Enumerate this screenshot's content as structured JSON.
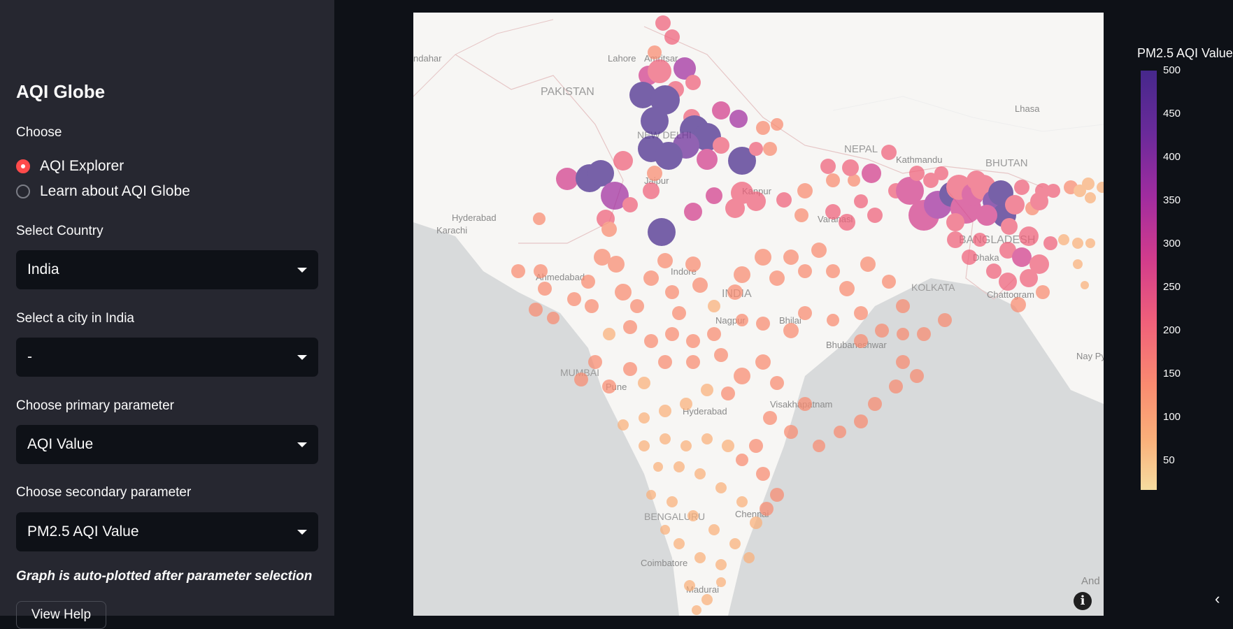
{
  "sidebar": {
    "title": "AQI Globe",
    "choose_label": "Choose",
    "radio_options": [
      "AQI Explorer",
      "Learn about AQI Globe"
    ],
    "selected_option": "AQI Explorer",
    "country_label": "Select Country",
    "country_value": "India",
    "city_label": "Select a city in India",
    "city_value": "-",
    "primary_label": "Choose primary parameter",
    "primary_value": "AQI Value",
    "secondary_label": "Choose secondary parameter",
    "secondary_value": "PM2.5 AQI Value",
    "note": "Graph is auto-plotted after parameter selection",
    "help_button": "View Help"
  },
  "map": {
    "labels": [
      "ndahar",
      "Lahore",
      "Amritsar",
      "PAKISTAN",
      "NEW DELHI",
      "Jaipur",
      "Kanpur",
      "Lhasa",
      "NEPAL",
      "Kathmandu",
      "BHUTAN",
      "Hyderabad",
      "Karachi",
      "Varanasi",
      "BANGLADESH",
      "Dhaka",
      "Ahmedabad",
      "Indore",
      "INDIA",
      "KOLKATA",
      "Chattogram",
      "Nagpur",
      "Bhilai",
      "Bhubaneshwar",
      "MUMBAI",
      "Pune",
      "Hyderabad",
      "Visakhapatnam",
      "Nay Pyi",
      "BENGALURU",
      "Chennai",
      "Coimbatore",
      "Madurai",
      "And"
    ]
  },
  "legend": {
    "title": "PM2.5 AQI Value",
    "ticks": [
      "500",
      "450",
      "400",
      "350",
      "300",
      "250",
      "200",
      "150",
      "100",
      "50"
    ]
  },
  "colors": {
    "accent": "#ff4b4b",
    "sidebar_bg": "#262730",
    "app_bg": "#0e1117"
  },
  "icons": {
    "info": "info-icon",
    "collapse": "chevron-left-icon"
  }
}
